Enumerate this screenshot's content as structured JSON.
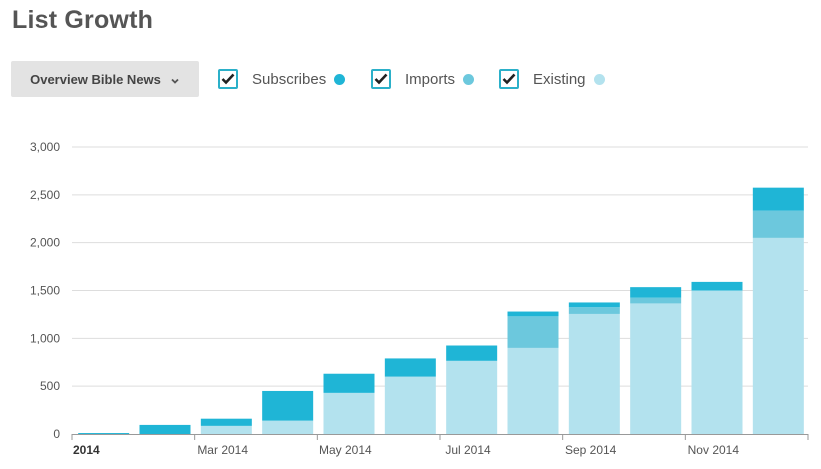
{
  "header": {
    "title": "List Growth",
    "dropdown_label": "Overview Bible News"
  },
  "legend": [
    {
      "label": "Subscribes",
      "color": "#1fb5d6",
      "checked": true
    },
    {
      "label": "Imports",
      "color": "#6cc8dd",
      "checked": true
    },
    {
      "label": "Existing",
      "color": "#b3e2ee",
      "checked": true
    }
  ],
  "chart_data": {
    "type": "bar",
    "stacked": true,
    "categories": [
      "Jan 2014",
      "Feb 2014",
      "Mar 2014",
      "Apr 2014",
      "May 2014",
      "Jun 2014",
      "Jul 2014",
      "Aug 2014",
      "Sep 2014",
      "Oct 2014",
      "Nov 2014",
      "Dec 2014"
    ],
    "series": [
      {
        "name": "Existing",
        "color": "#b3e2ee",
        "values": [
          0,
          0,
          85,
          140,
          430,
          600,
          765,
          900,
          1255,
          1365,
          1500,
          2050
        ]
      },
      {
        "name": "Imports",
        "color": "#6cc8dd",
        "values": [
          0,
          0,
          0,
          0,
          0,
          0,
          0,
          330,
          70,
          60,
          0,
          285
        ]
      },
      {
        "name": "Subscribes",
        "color": "#1fb5d6",
        "values": [
          10,
          95,
          75,
          310,
          200,
          190,
          160,
          50,
          50,
          110,
          90,
          240
        ]
      }
    ],
    "x_tick_labels": [
      {
        "text": "2014",
        "at": 0,
        "bold": true
      },
      {
        "text": "Mar 2014",
        "at": 2
      },
      {
        "text": "May 2014",
        "at": 4
      },
      {
        "text": "Jul 2014",
        "at": 6
      },
      {
        "text": "Sep 2014",
        "at": 8
      },
      {
        "text": "Nov 2014",
        "at": 10
      }
    ],
    "y_ticks": [
      "0",
      "500",
      "1,000",
      "1,500",
      "2,000",
      "2,500",
      "3,000"
    ],
    "ylim": [
      0,
      3000
    ],
    "grid": true
  }
}
